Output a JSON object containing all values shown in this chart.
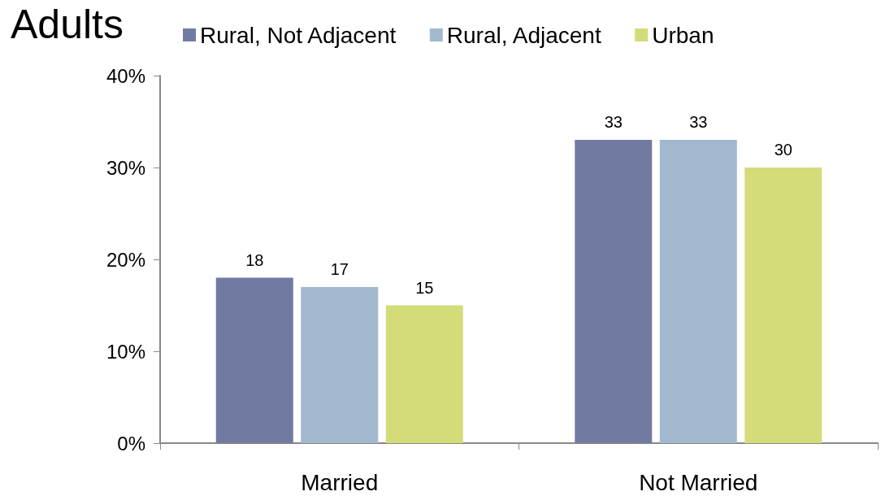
{
  "chart_data": {
    "type": "bar",
    "title": "Adults",
    "categories": [
      "Married",
      "Not Married"
    ],
    "series": [
      {
        "name": "Rural, Not Adjacent",
        "color": "#717ba2",
        "values": [
          18,
          33
        ]
      },
      {
        "name": "Rural, Adjacent",
        "color": "#a2b8cf",
        "values": [
          17,
          33
        ]
      },
      {
        "name": "Urban",
        "color": "#d4dc7a",
        "values": [
          15,
          30
        ]
      }
    ],
    "ylim": [
      0,
      40
    ],
    "yticks": [
      {
        "value": 0,
        "label": "0%"
      },
      {
        "value": 10,
        "label": "10%"
      },
      {
        "value": 20,
        "label": "20%"
      },
      {
        "value": 30,
        "label": "30%"
      },
      {
        "value": 40,
        "label": "40%"
      }
    ],
    "data_labels": true,
    "grid": false,
    "legend": "top"
  }
}
